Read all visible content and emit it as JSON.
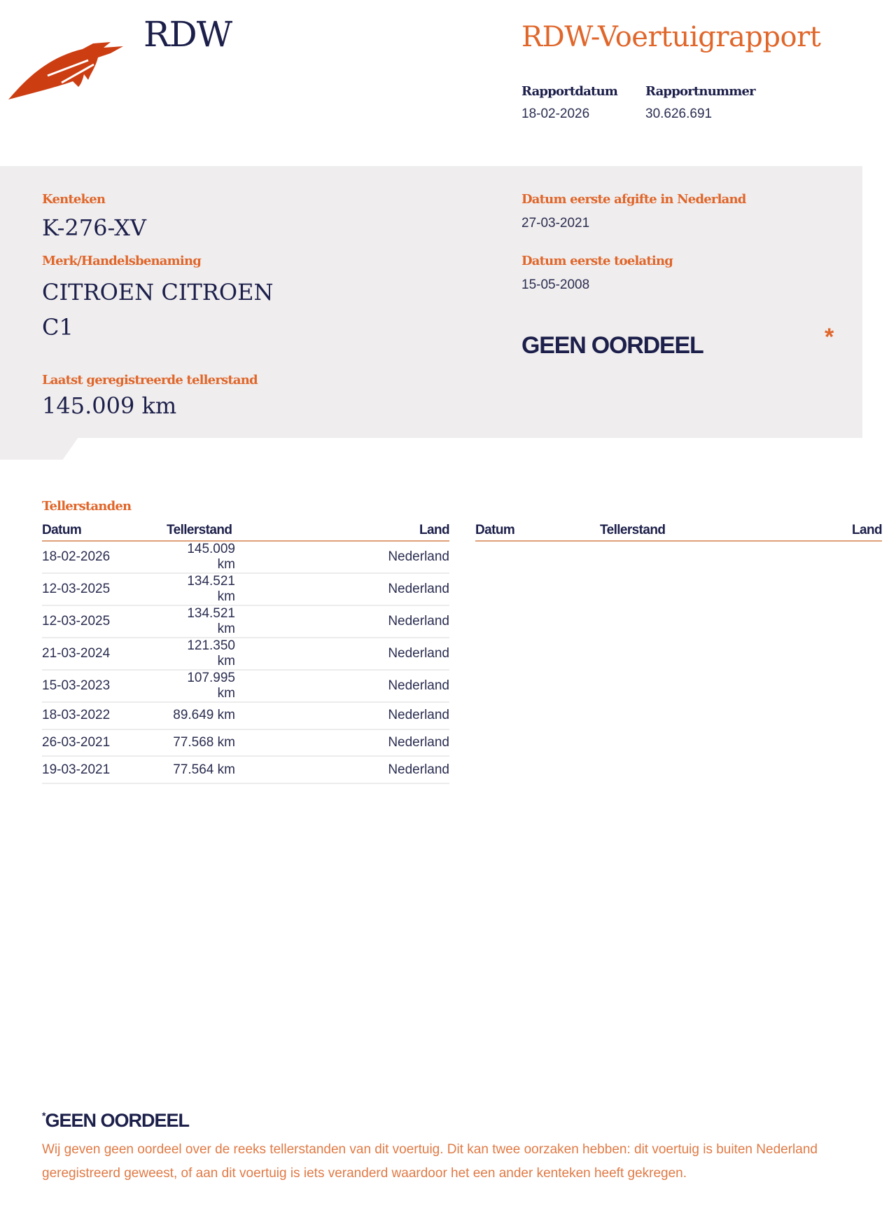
{
  "header": {
    "brand": "RDW",
    "title": "RDW-Voertuigrapport",
    "logo_icon": "rdw-feather-logo",
    "report_date_label": "Rapportdatum",
    "report_date": "18-02-2026",
    "report_number_label": "Rapportnummer",
    "report_number": "30.626.691"
  },
  "vehicle": {
    "plate_label": "Kenteken",
    "plate": "K-276-XV",
    "make_label": "Merk/Handelsbenaming",
    "make_line1": "CITROEN CITROEN",
    "make_line2": "C1",
    "odometer_label": "Laatst geregistreerde tellerstand",
    "odometer": "145.009 km",
    "first_nl_label": "Datum eerste afgifte in Nederland",
    "first_nl": "27-03-2021",
    "first_admission_label": "Datum eerste toelating",
    "first_admission": "15-05-2008",
    "verdict": "GEEN OORDEEL",
    "verdict_marker": "*"
  },
  "readings": {
    "title": "Tellerstanden",
    "columns": [
      "Datum",
      "Tellerstand",
      "Land"
    ],
    "rows": [
      [
        "18-02-2026",
        "145.009 km",
        "Nederland"
      ],
      [
        "12-03-2025",
        "134.521 km",
        "Nederland"
      ],
      [
        "12-03-2025",
        "134.521 km",
        "Nederland"
      ],
      [
        "21-03-2024",
        "121.350 km",
        "Nederland"
      ],
      [
        "15-03-2023",
        "107.995 km",
        "Nederland"
      ],
      [
        "18-03-2022",
        "89.649 km",
        "Nederland"
      ],
      [
        "26-03-2021",
        "77.568 km",
        "Nederland"
      ],
      [
        "19-03-2021",
        "77.564 km",
        "Nederland"
      ]
    ]
  },
  "footnote": {
    "marker": "*",
    "title": "GEEN OORDEEL",
    "text": "Wij geven geen oordeel over de reeks tellerstanden van dit voertuig. Dit kan twee oorzaken hebben: dit voertuig is buiten Nederland geregistreerd geweest, of aan dit voertuig is iets veranderd waardoor het een ander kenteken heeft gekregen."
  },
  "colors": {
    "accent": "#e0662a",
    "logo": "#cc3d12",
    "navy": "#1c1f4a",
    "panel": "#efedee"
  }
}
